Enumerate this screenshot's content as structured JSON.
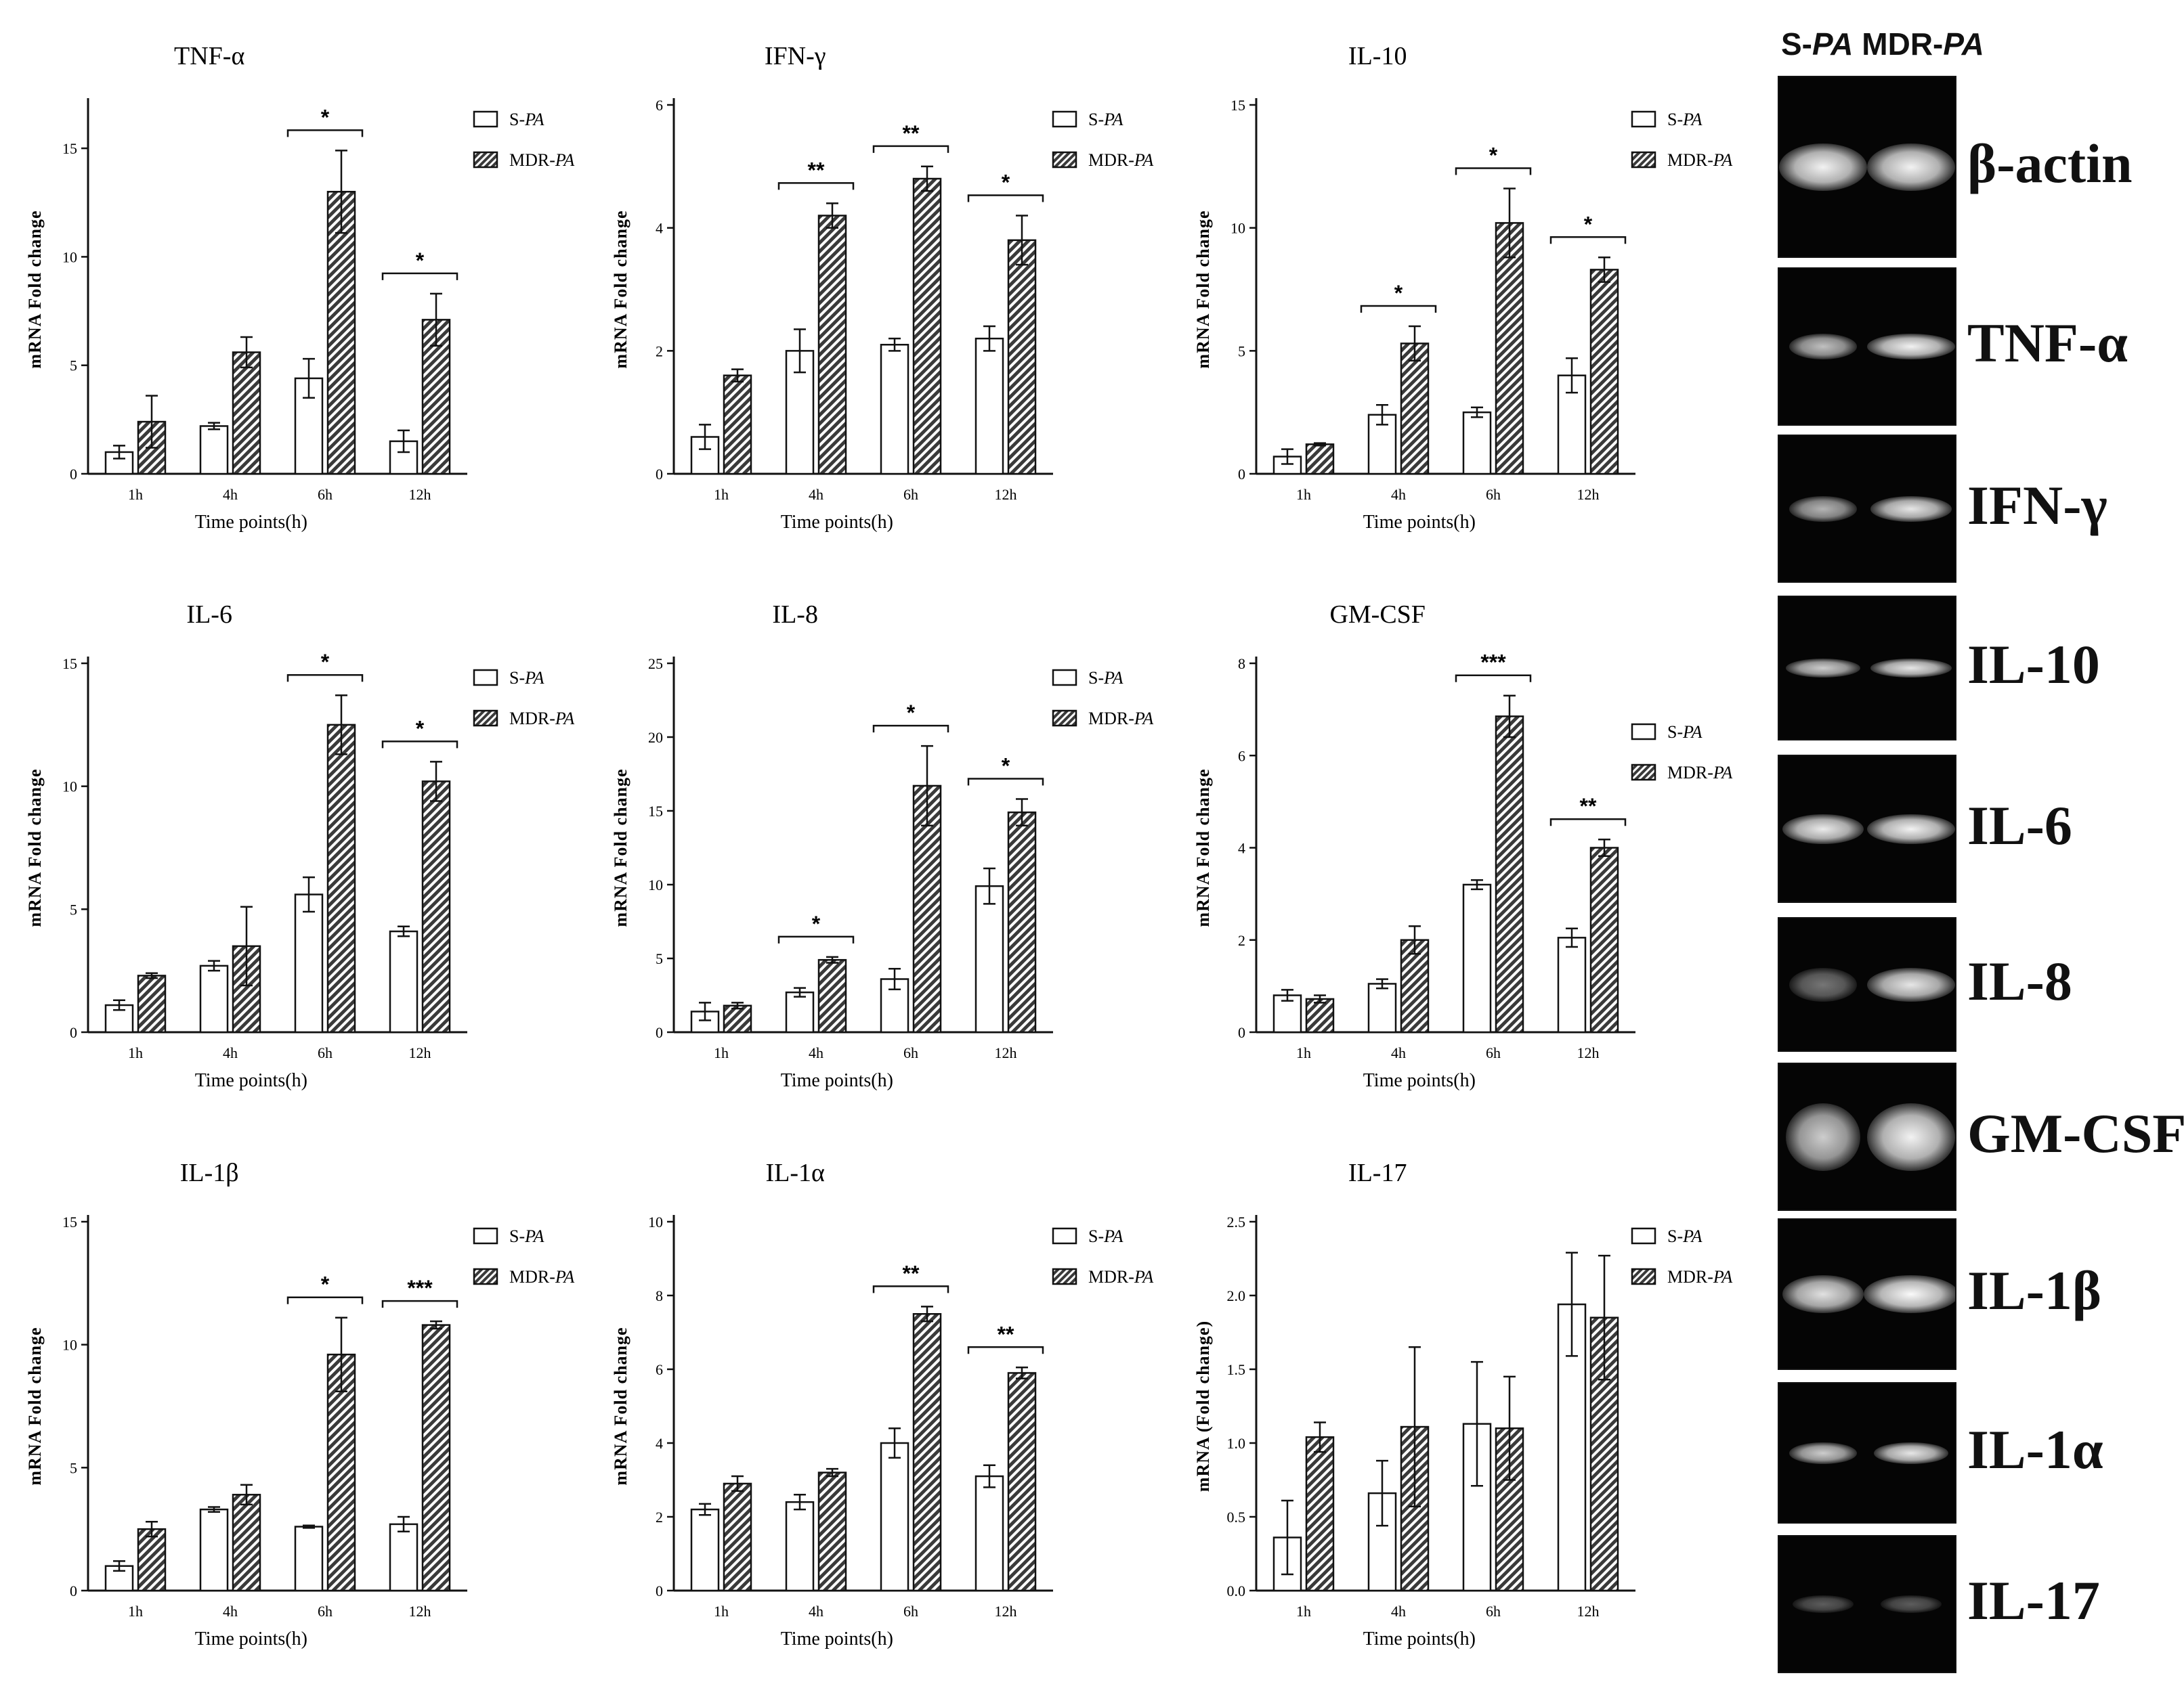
{
  "legend": {
    "s_label": "S-",
    "s_ital": "PA",
    "m_label": "MDR-",
    "m_ital": "PA"
  },
  "xlabel": "Time points(h)",
  "ylabel_default": "mRNA Fold change",
  "categories": [
    "1h",
    "4h",
    "6h",
    "12h"
  ],
  "chart_data": [
    {
      "type": "bar",
      "title": "TNF-α",
      "ylabel": "mRNA Fold change",
      "ylim": [
        0,
        17
      ],
      "yticks": [
        0,
        5,
        10,
        15
      ],
      "ytick_labels": [
        "0",
        "5",
        "10",
        "15"
      ],
      "categories": [
        "1h",
        "4h",
        "6h",
        "12h"
      ],
      "series": [
        {
          "name": "S-PA",
          "values": [
            1.0,
            2.2,
            4.4,
            1.5
          ],
          "errors": [
            0.3,
            0.15,
            0.9,
            0.5
          ]
        },
        {
          "name": "MDR-PA",
          "values": [
            2.4,
            5.6,
            13.0,
            7.1
          ],
          "errors": [
            1.2,
            0.7,
            1.9,
            1.2
          ]
        }
      ],
      "significance": [
        {
          "category": "6h",
          "label": "*"
        },
        {
          "category": "12h",
          "label": "*"
        }
      ]
    },
    {
      "type": "bar",
      "title": "IFN-γ",
      "ylabel": "mRNA Fold change",
      "ylim": [
        0,
        6
      ],
      "yticks": [
        0,
        2,
        4,
        6
      ],
      "ytick_labels": [
        "0",
        "2",
        "4",
        "6"
      ],
      "categories": [
        "1h",
        "4h",
        "6h",
        "12h"
      ],
      "series": [
        {
          "name": "S-PA",
          "values": [
            0.6,
            2.0,
            2.1,
            2.2
          ],
          "errors": [
            0.2,
            0.35,
            0.1,
            0.2
          ]
        },
        {
          "name": "MDR-PA",
          "values": [
            1.6,
            4.2,
            4.8,
            3.8
          ],
          "errors": [
            0.1,
            0.2,
            0.2,
            0.4
          ]
        }
      ],
      "significance": [
        {
          "category": "4h",
          "label": "**"
        },
        {
          "category": "6h",
          "label": "**"
        },
        {
          "category": "12h",
          "label": "*"
        }
      ]
    },
    {
      "type": "bar",
      "title": "IL-10",
      "ylabel": "mRNA Fold change",
      "ylim": [
        0,
        15
      ],
      "yticks": [
        0,
        5,
        10,
        15
      ],
      "ytick_labels": [
        "0",
        "5",
        "10",
        "15"
      ],
      "categories": [
        "1h",
        "4h",
        "6h",
        "12h"
      ],
      "series": [
        {
          "name": "S-PA",
          "values": [
            0.7,
            2.4,
            2.5,
            4.0
          ],
          "errors": [
            0.3,
            0.4,
            0.2,
            0.7
          ]
        },
        {
          "name": "MDR-PA",
          "values": [
            1.2,
            5.3,
            10.2,
            8.3
          ],
          "errors": [
            0.05,
            0.7,
            1.4,
            0.5
          ]
        }
      ],
      "significance": [
        {
          "category": "4h",
          "label": "*"
        },
        {
          "category": "6h",
          "label": "*"
        },
        {
          "category": "12h",
          "label": "*"
        }
      ]
    },
    {
      "type": "bar",
      "title": "IL-6",
      "ylabel": "mRNA Fold change",
      "ylim": [
        0,
        15
      ],
      "yticks": [
        0,
        5,
        10,
        15
      ],
      "ytick_labels": [
        "0",
        "5",
        "10",
        "15"
      ],
      "categories": [
        "1h",
        "4h",
        "6h",
        "12h"
      ],
      "series": [
        {
          "name": "S-PA",
          "values": [
            1.1,
            2.7,
            5.6,
            4.1
          ],
          "errors": [
            0.2,
            0.2,
            0.7,
            0.2
          ]
        },
        {
          "name": "MDR-PA",
          "values": [
            2.3,
            3.5,
            12.5,
            10.2
          ],
          "errors": [
            0.1,
            1.6,
            1.2,
            0.8
          ]
        }
      ],
      "significance": [
        {
          "category": "6h",
          "label": "*"
        },
        {
          "category": "12h",
          "label": "*"
        }
      ]
    },
    {
      "type": "bar",
      "title": "IL-8",
      "ylabel": "mRNA Fold change",
      "ylim": [
        0,
        25
      ],
      "yticks": [
        0,
        5,
        10,
        15,
        20,
        25
      ],
      "ytick_labels": [
        "0",
        "5",
        "10",
        "15",
        "20",
        "25"
      ],
      "categories": [
        "1h",
        "4h",
        "6h",
        "12h"
      ],
      "series": [
        {
          "name": "S-PA",
          "values": [
            1.4,
            2.7,
            3.6,
            9.9
          ],
          "errors": [
            0.6,
            0.3,
            0.7,
            1.2
          ]
        },
        {
          "name": "MDR-PA",
          "values": [
            1.8,
            4.9,
            16.7,
            14.9
          ],
          "errors": [
            0.2,
            0.2,
            2.7,
            0.9
          ]
        }
      ],
      "significance": [
        {
          "category": "4h",
          "label": "*"
        },
        {
          "category": "6h",
          "label": "*"
        },
        {
          "category": "12h",
          "label": "*"
        }
      ]
    },
    {
      "type": "bar",
      "title": "GM-CSF",
      "ylabel": "mRNA Fold change",
      "ylim": [
        0,
        8
      ],
      "yticks": [
        0,
        2,
        4,
        6,
        8
      ],
      "ytick_labels": [
        "0",
        "2",
        "4",
        "6",
        "8"
      ],
      "categories": [
        "1h",
        "4h",
        "6h",
        "12h"
      ],
      "series": [
        {
          "name": "S-PA",
          "values": [
            0.8,
            1.05,
            3.2,
            2.05
          ],
          "errors": [
            0.12,
            0.1,
            0.1,
            0.2
          ]
        },
        {
          "name": "MDR-PA",
          "values": [
            0.72,
            2.0,
            6.85,
            4.0
          ],
          "errors": [
            0.08,
            0.3,
            0.45,
            0.18
          ]
        }
      ],
      "significance": [
        {
          "category": "6h",
          "label": "***"
        },
        {
          "category": "12h",
          "label": "**"
        }
      ]
    },
    {
      "type": "bar",
      "title": "IL-1β",
      "ylabel": "mRNA Fold change",
      "ylim": [
        0,
        15
      ],
      "yticks": [
        0,
        5,
        10,
        15
      ],
      "ytick_labels": [
        "0",
        "5",
        "10",
        "15"
      ],
      "categories": [
        "1h",
        "4h",
        "6h",
        "12h"
      ],
      "series": [
        {
          "name": "S-PA",
          "values": [
            1.0,
            3.3,
            2.6,
            2.7
          ],
          "errors": [
            0.2,
            0.1,
            0.05,
            0.3
          ]
        },
        {
          "name": "MDR-PA",
          "values": [
            2.5,
            3.9,
            9.6,
            10.8
          ],
          "errors": [
            0.3,
            0.4,
            1.5,
            0.15
          ]
        }
      ],
      "significance": [
        {
          "category": "6h",
          "label": "*"
        },
        {
          "category": "12h",
          "label": "***"
        }
      ]
    },
    {
      "type": "bar",
      "title": "IL-1α",
      "ylabel": "mRNA Fold change",
      "ylim": [
        0,
        10
      ],
      "yticks": [
        0,
        2,
        4,
        6,
        8,
        10
      ],
      "ytick_labels": [
        "0",
        "2",
        "4",
        "6",
        "8",
        "10"
      ],
      "categories": [
        "1h",
        "4h",
        "6h",
        "12h"
      ],
      "series": [
        {
          "name": "S-PA",
          "values": [
            2.2,
            2.4,
            4.0,
            3.1
          ],
          "errors": [
            0.15,
            0.2,
            0.4,
            0.3
          ]
        },
        {
          "name": "MDR-PA",
          "values": [
            2.9,
            3.2,
            7.5,
            5.9
          ],
          "errors": [
            0.2,
            0.1,
            0.2,
            0.15
          ]
        }
      ],
      "significance": [
        {
          "category": "6h",
          "label": "**"
        },
        {
          "category": "12h",
          "label": "**"
        }
      ]
    },
    {
      "type": "bar",
      "title": "IL-17",
      "ylabel": "mRNA (Fold change)",
      "ylim": [
        0,
        2.5
      ],
      "yticks": [
        0,
        0.5,
        1,
        1.5,
        2,
        2.5
      ],
      "ytick_labels": [
        "0.0",
        "0.5",
        "1.0",
        "1.5",
        "2.0",
        "2.5"
      ],
      "categories": [
        "1h",
        "4h",
        "6h",
        "12h"
      ],
      "series": [
        {
          "name": "S-PA",
          "values": [
            0.36,
            0.66,
            1.13,
            1.94
          ],
          "errors": [
            0.25,
            0.22,
            0.42,
            0.35
          ]
        },
        {
          "name": "MDR-PA",
          "values": [
            1.04,
            1.11,
            1.1,
            1.85
          ],
          "errors": [
            0.1,
            0.54,
            0.35,
            0.42
          ]
        }
      ],
      "significance": []
    }
  ],
  "gel": {
    "header_s": "S-",
    "header_s_ital": "PA",
    "header_m": " MDR-",
    "header_m_ital": "PA",
    "labels": [
      "β-actin",
      "TNF-α",
      "IFN-γ",
      "IL-10",
      "IL-6",
      "IL-8",
      "GM-CSF",
      "IL-1β",
      "IL-1α",
      "IL-17"
    ]
  }
}
